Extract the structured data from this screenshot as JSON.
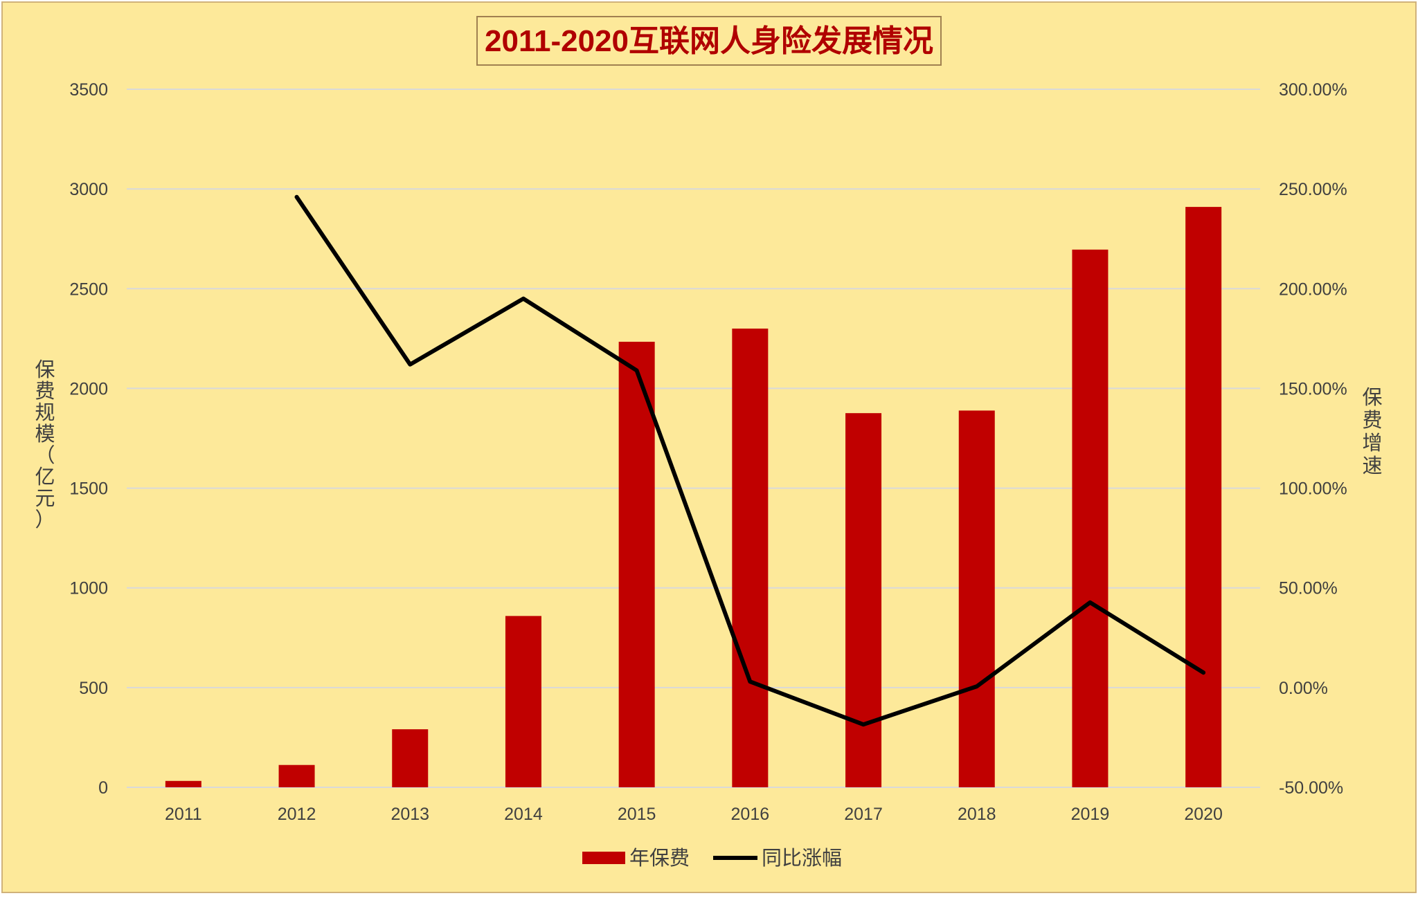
{
  "chart_data": {
    "type": "bar",
    "title": "2011-2020互联网人身险发展情况",
    "categories": [
      "2011",
      "2012",
      "2013",
      "2014",
      "2015",
      "2016",
      "2017",
      "2018",
      "2019",
      "2020"
    ],
    "series": [
      {
        "name": "年保费",
        "type": "bar",
        "axis": "left",
        "values": [
          32,
          112,
          291,
          859,
          2234,
          2300,
          1876,
          1889,
          2696,
          2910
        ]
      },
      {
        "name": "同比涨幅",
        "type": "line",
        "axis": "right",
        "values": [
          null,
          2.46,
          1.62,
          1.95,
          1.59,
          0.03,
          -0.185,
          0.006,
          0.427,
          0.075
        ]
      }
    ],
    "ylabel": "保费规模（亿元）",
    "y2label": "保费增速",
    "ylim": [
      0,
      3500
    ],
    "y2lim": [
      -0.5,
      3.0
    ],
    "yticks": [
      "0",
      "500",
      "1000",
      "1500",
      "2000",
      "2500",
      "3000",
      "3500"
    ],
    "y2ticks": [
      "-50.00%",
      "0.00%",
      "50.00%",
      "100.00%",
      "150.00%",
      "200.00%",
      "250.00%",
      "300.00%"
    ],
    "grid": true,
    "legend_position": "bottom",
    "colors": {
      "background": "#fde99a",
      "bar": "#c00000",
      "line": "#000000",
      "title": "#b00000",
      "grid": "#d9d9d9",
      "text": "#404040",
      "border": "#d0b27a"
    }
  }
}
